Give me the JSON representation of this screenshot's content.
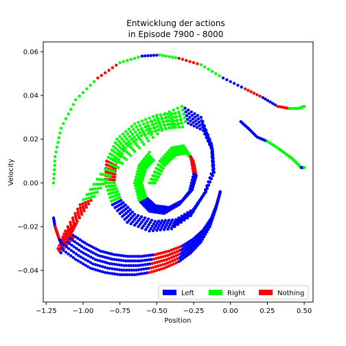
{
  "chart_data": {
    "type": "scatter",
    "title_line1": "Entwicklung der actions",
    "title_line2": "in Episode 7900 - 8000",
    "xlabel": "Position",
    "ylabel": "Velocity",
    "xlim": [
      -1.27,
      0.56
    ],
    "ylim": [
      -0.0545,
      0.0645
    ],
    "xticks": [
      -1.25,
      -1.0,
      -0.75,
      -0.5,
      -0.25,
      0.0,
      0.25,
      0.5
    ],
    "xtick_labels": [
      "−1.25",
      "−1.00",
      "−0.75",
      "−0.50",
      "−0.25",
      "0.00",
      "0.25",
      "0.50"
    ],
    "yticks": [
      -0.04,
      -0.02,
      0.0,
      0.02,
      0.04,
      0.06
    ],
    "ytick_labels": [
      "−0.04",
      "−0.02",
      "0.00",
      "0.02",
      "0.04",
      "0.06"
    ],
    "legend_position": "lower-right",
    "series": [
      {
        "name": "Left",
        "color": "#0000ff"
      },
      {
        "name": "Right",
        "color": "#00ff00"
      },
      {
        "name": "Nothing",
        "color": "#ff0000"
      }
    ],
    "trajectories": [
      {
        "kind": "outer",
        "x": [
          -1.2,
          -1.19,
          -1.15,
          -1.05,
          -0.9,
          -0.75,
          -0.6,
          -0.48,
          -0.35,
          -0.2,
          -0.05,
          0.1,
          0.22,
          0.32,
          0.4,
          0.46,
          0.5
        ],
        "y": [
          0.0,
          0.012,
          0.025,
          0.038,
          0.048,
          0.055,
          0.058,
          0.0585,
          0.057,
          0.054,
          0.048,
          0.043,
          0.039,
          0.035,
          0.034,
          0.034,
          0.035
        ],
        "actions": [
          "R",
          "R",
          "R",
          "R",
          "N",
          "R",
          "L",
          "R",
          "N",
          "R",
          "L",
          "N",
          "L",
          "N",
          "R",
          "R",
          "R"
        ]
      },
      {
        "kind": "branch",
        "x": [
          0.07,
          0.12,
          0.18,
          0.25,
          0.32,
          0.38,
          0.42,
          0.45,
          0.48,
          0.5
        ],
        "y": [
          0.028,
          0.025,
          0.021,
          0.019,
          0.016,
          0.013,
          0.011,
          0.009,
          0.007,
          0.007
        ],
        "actions": [
          "L",
          "L",
          "L",
          "R",
          "R",
          "R",
          "R",
          "R",
          "L",
          "R"
        ]
      },
      {
        "kind": "spiral-band",
        "x": [
          -0.35,
          -0.5,
          -0.65,
          -0.77,
          -0.84,
          -0.85,
          -0.8,
          -0.7,
          -0.55,
          -0.4,
          -0.27,
          -0.18,
          -0.12,
          -0.13,
          -0.2,
          -0.33,
          -0.5,
          -0.7,
          -0.88,
          -1.02,
          -1.12,
          -1.17,
          -1.15
        ],
        "y": [
          0.032,
          0.031,
          0.027,
          0.02,
          0.01,
          0.0,
          -0.01,
          -0.018,
          -0.022,
          -0.021,
          -0.015,
          -0.005,
          0.006,
          0.018,
          0.03,
          0.035,
          0.03,
          0.018,
          0.004,
          -0.01,
          -0.022,
          -0.03,
          -0.032
        ],
        "actions": [
          "R",
          "R",
          "R",
          "R",
          "N",
          "R",
          "L",
          "L",
          "L",
          "L",
          "L",
          "L",
          "L",
          "L",
          "L",
          "R",
          "R",
          "R",
          "R",
          "N",
          "N",
          "N",
          "L"
        ]
      },
      {
        "kind": "bottom-band",
        "x": [
          -1.15,
          -1.05,
          -0.95,
          -0.85,
          -0.75,
          -0.65,
          -0.55,
          -0.45,
          -0.35,
          -0.27,
          -0.2,
          -0.14,
          -0.1,
          -0.07
        ],
        "y": [
          -0.03,
          -0.035,
          -0.039,
          -0.041,
          -0.042,
          -0.042,
          -0.041,
          -0.039,
          -0.036,
          -0.032,
          -0.027,
          -0.02,
          -0.012,
          -0.004
        ],
        "actions": [
          "L",
          "L",
          "L",
          "L",
          "L",
          "L",
          "N",
          "N",
          "L",
          "L",
          "L",
          "L",
          "L",
          "L"
        ]
      },
      {
        "kind": "inner-spiral",
        "x": [
          -0.55,
          -0.48,
          -0.4,
          -0.32,
          -0.27,
          -0.25,
          -0.28,
          -0.35,
          -0.45,
          -0.55,
          -0.62,
          -0.65,
          -0.62,
          -0.55
        ],
        "y": [
          0.0,
          0.01,
          0.016,
          0.017,
          0.012,
          0.004,
          -0.004,
          -0.01,
          -0.014,
          -0.013,
          -0.008,
          0.0,
          0.008,
          0.014
        ],
        "actions": [
          "R",
          "R",
          "R",
          "R",
          "N",
          "L",
          "L",
          "L",
          "L",
          "L",
          "R",
          "R",
          "R",
          "R"
        ]
      },
      {
        "kind": "left-cluster",
        "x": [
          -1.2,
          -1.19,
          -1.18,
          -1.17,
          -1.16,
          -1.15,
          -1.14
        ],
        "y": [
          -0.016,
          -0.02,
          -0.022,
          -0.024,
          -0.026,
          -0.027,
          -0.028
        ],
        "actions": [
          "L",
          "N",
          "N",
          "N",
          "L",
          "L",
          "L"
        ]
      }
    ]
  }
}
